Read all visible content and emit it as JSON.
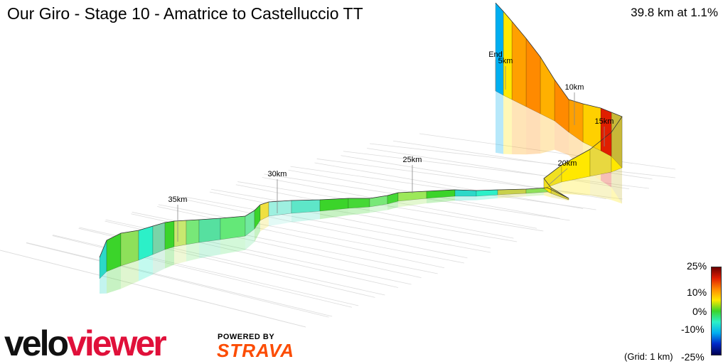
{
  "header": {
    "title": "Our Giro - Stage 10 - Amatrice to Castelluccio TT",
    "summary": "39.8 km at 1.1%"
  },
  "chart_data": {
    "type": "area",
    "title": "Our Giro - Stage 10 - Amatrice to Castelluccio TT",
    "xlabel": "",
    "ylabel": "",
    "distance_km": 39.8,
    "average_gradient_pct": 1.1,
    "markers": [
      {
        "label": "End"
      },
      {
        "label": "5km"
      },
      {
        "label": "10km"
      },
      {
        "label": "15km"
      },
      {
        "label": "20km"
      },
      {
        "label": "25km"
      },
      {
        "label": "30km"
      },
      {
        "label": "35km"
      }
    ],
    "gradient_scale": {
      "ticks": [
        "25%",
        "10%",
        "0%",
        "-10%",
        "-25%"
      ],
      "colors": [
        "#6b0000",
        "#e01e00",
        "#ff8a00",
        "#ffe800",
        "#3bd42a",
        "#2cf0c8",
        "#00aef0",
        "#0028c8",
        "#000050"
      ]
    },
    "grid_note": "(Grid: 1 km)"
  },
  "branding": {
    "logo_velo": "velo",
    "logo_viewer": "viewer",
    "powered_by": "POWERED BY",
    "strava": "STRAVA",
    "velo_color": "#111111",
    "viewer_color": "#e0103a",
    "strava_color": "#fc4c02"
  }
}
